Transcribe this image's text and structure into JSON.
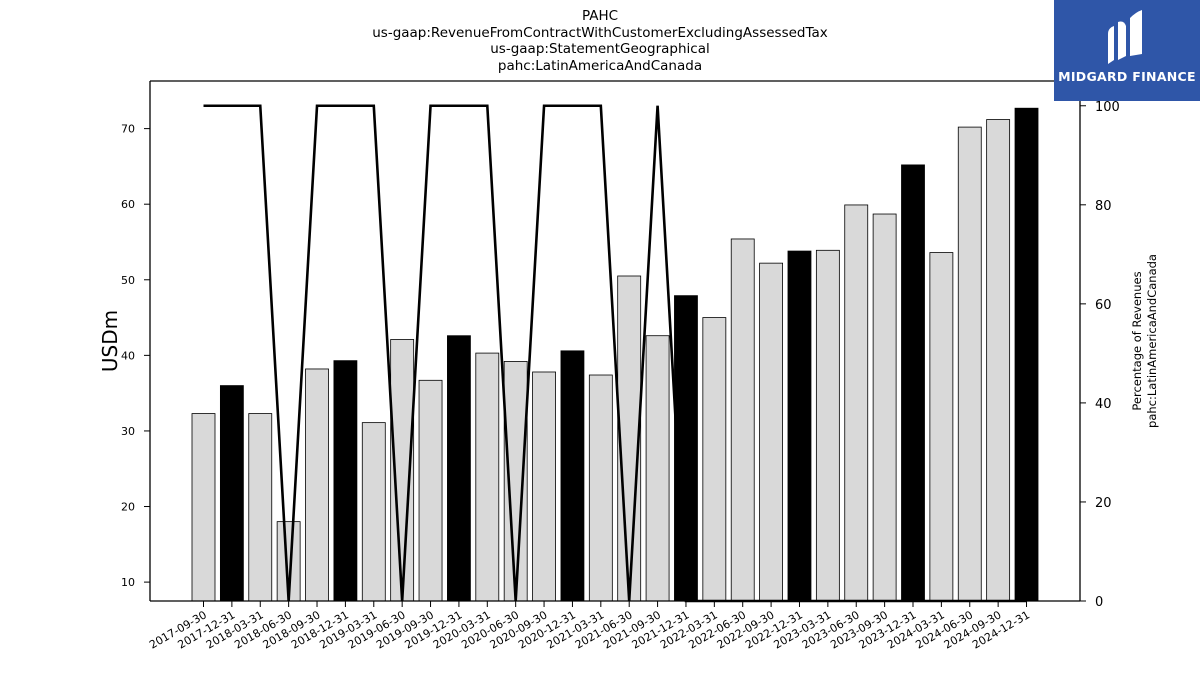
{
  "title_lines": [
    "PAHC",
    "us-gaap:RevenueFromContractWithCustomerExcludingAssessedTax",
    "us-gaap:StatementGeographical",
    "pahc:LatinAmericaAndCanada"
  ],
  "logo": {
    "text": "MIDGARD FINANCE",
    "bg_color": "#2f56a8"
  },
  "chart_data": {
    "type": "bar",
    "categories": [
      "2017-09-30",
      "2017-12-31",
      "2018-03-31",
      "2018-06-30",
      "2018-09-30",
      "2018-12-31",
      "2019-03-31",
      "2019-06-30",
      "2019-09-30",
      "2019-12-31",
      "2020-03-31",
      "2020-06-30",
      "2020-09-30",
      "2020-12-31",
      "2021-03-31",
      "2021-06-30",
      "2021-09-30",
      "2021-12-31",
      "2022-03-31",
      "2022-06-30",
      "2022-09-30",
      "2022-12-31",
      "2023-03-31",
      "2023-06-30",
      "2023-09-30",
      "2023-12-31",
      "2024-03-31",
      "2024-06-30",
      "2024-09-30",
      "2024-12-31"
    ],
    "values": [
      32.3,
      36.0,
      32.3,
      18.0,
      38.2,
      39.3,
      31.1,
      42.1,
      36.7,
      42.6,
      40.3,
      39.2,
      37.8,
      40.6,
      37.4,
      50.5,
      42.6,
      47.9,
      45.0,
      55.4,
      52.2,
      53.8,
      53.9,
      59.9,
      58.7,
      65.2,
      53.6,
      70.2,
      71.2,
      72.7
    ],
    "highlight": [
      false,
      true,
      false,
      false,
      false,
      true,
      false,
      false,
      false,
      true,
      false,
      false,
      false,
      true,
      false,
      false,
      false,
      true,
      false,
      false,
      false,
      true,
      false,
      false,
      false,
      true,
      false,
      false,
      false,
      true
    ],
    "bar_color": "#d9d9d9",
    "highlight_color": "#000000",
    "ylabel": "USDm",
    "ylim": [
      7.5,
      76.3
    ],
    "yticks": [
      10,
      20,
      30,
      40,
      50,
      60,
      70
    ],
    "series2": {
      "type": "line",
      "color": "#000000",
      "values": [
        100,
        100,
        100,
        0,
        100,
        100,
        100,
        0,
        100,
        100,
        100,
        0,
        100,
        100,
        100,
        0,
        100,
        0,
        0,
        0,
        0,
        0,
        0,
        0,
        0,
        0,
        0,
        0,
        0,
        0
      ]
    },
    "y2label": [
      "Percentage of Revenues",
      "pahc:LatinAmericaAndCanada"
    ],
    "y2lim": [
      0,
      105
    ],
    "y2ticks": [
      0,
      20,
      40,
      60,
      80,
      100
    ]
  }
}
